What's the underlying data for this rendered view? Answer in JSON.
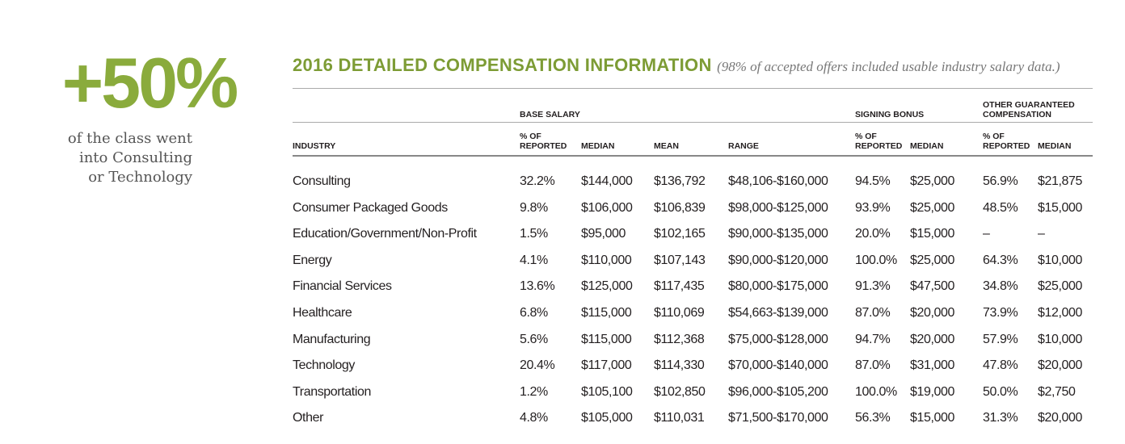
{
  "sidebar": {
    "stat": "+50%",
    "lines": [
      "of the class went",
      "into Consulting",
      "or Technology"
    ]
  },
  "table": {
    "title": "2016 DETAILED COMPENSATION INFORMATION",
    "note": "(98% of accepted offers included usable industry salary data.)",
    "groups": [
      {
        "label": "BASE SALARY",
        "column": 1
      },
      {
        "label": "SIGNING BONUS",
        "column": 5
      },
      {
        "label": "OTHER GUARANTEED COMPENSATION",
        "column": 7
      }
    ],
    "columns": [
      "INDUSTRY",
      "% OF REPORTED",
      "MEDIAN",
      "MEAN",
      "RANGE",
      "% OF REPORTED",
      "MEDIAN",
      "% OF REPORTED",
      "MEDIAN"
    ],
    "rows": [
      [
        "Consulting",
        "32.2%",
        "$144,000",
        "$136,792",
        "$48,106-$160,000",
        "94.5%",
        "$25,000",
        "56.9%",
        "$21,875"
      ],
      [
        "Consumer Packaged Goods",
        "9.8%",
        "$106,000",
        "$106,839",
        "$98,000-$125,000",
        "93.9%",
        "$25,000",
        "48.5%",
        "$15,000"
      ],
      [
        "Education/Government/Non-Profit",
        "1.5%",
        "$95,000",
        "$102,165",
        "$90,000-$135,000",
        "20.0%",
        "$15,000",
        "–",
        "–"
      ],
      [
        "Energy",
        "4.1%",
        "$110,000",
        "$107,143",
        "$90,000-$120,000",
        "100.0%",
        "$25,000",
        "64.3%",
        "$10,000"
      ],
      [
        "Financial Services",
        "13.6%",
        "$125,000",
        "$117,435",
        "$80,000-$175,000",
        "91.3%",
        "$47,500",
        "34.8%",
        "$25,000"
      ],
      [
        "Healthcare",
        "6.8%",
        "$115,000",
        "$110,069",
        "$54,663-$139,000",
        "87.0%",
        "$20,000",
        "73.9%",
        "$12,000"
      ],
      [
        "Manufacturing",
        "5.6%",
        "$115,000",
        "$112,368",
        "$75,000-$128,000",
        "94.7%",
        "$20,000",
        "57.9%",
        "$10,000"
      ],
      [
        "Technology",
        "20.4%",
        "$117,000",
        "$114,330",
        "$70,000-$140,000",
        "87.0%",
        "$31,000",
        "47.8%",
        "$20,000"
      ],
      [
        "Transportation",
        "1.2%",
        "$105,100",
        "$102,850",
        "$96,000-$105,200",
        "100.0%",
        "$19,000",
        "50.0%",
        "$2,750"
      ],
      [
        "Other",
        "4.8%",
        "$105,000",
        "$110,031",
        "$71,500-$170,000",
        "56.3%",
        "$15,000",
        "31.3%",
        "$20,000"
      ]
    ]
  }
}
